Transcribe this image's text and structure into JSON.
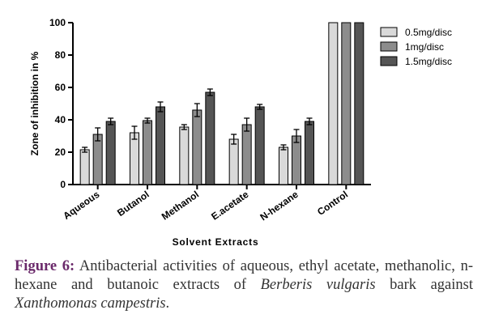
{
  "chart_data": {
    "type": "bar",
    "title": "",
    "xlabel": "Solvent Extracts",
    "ylabel": "Zone of inhibition in %",
    "ylim": [
      0,
      100
    ],
    "yticks": [
      0,
      20,
      40,
      60,
      80,
      100
    ],
    "categories": [
      "Aqueous",
      "Butanol",
      "Methanol",
      "E.acetate",
      "N-hexane",
      "Control"
    ],
    "series": [
      {
        "name": "0.5mg/disc",
        "color": "#d9d9d9",
        "values": [
          21.5,
          32,
          35.5,
          28,
          23,
          100
        ],
        "errors": [
          1.5,
          4,
          1.5,
          3,
          1.5,
          0
        ]
      },
      {
        "name": "1mg/disc",
        "color": "#8c8c8c",
        "values": [
          31,
          39.5,
          46,
          37,
          30,
          100
        ],
        "errors": [
          4,
          1.5,
          4,
          4,
          4,
          0
        ]
      },
      {
        "name": "1.5mg/disc",
        "color": "#555555",
        "values": [
          39,
          48,
          57,
          48,
          39,
          100
        ],
        "errors": [
          2,
          3,
          2,
          1.5,
          2,
          0
        ]
      }
    ],
    "error_bars": true,
    "grid": false,
    "legend_position": "top-right"
  },
  "caption": {
    "label": "Figure 6:",
    "text1": " Antibacterial activities of aqueous, ethyl acetate, methanolic, n-hexane and butanoic extracts of ",
    "species1": "Berberis vulgaris",
    "text2": " bark against ",
    "species2": "Xanthomonas campestris",
    "text3": "."
  }
}
